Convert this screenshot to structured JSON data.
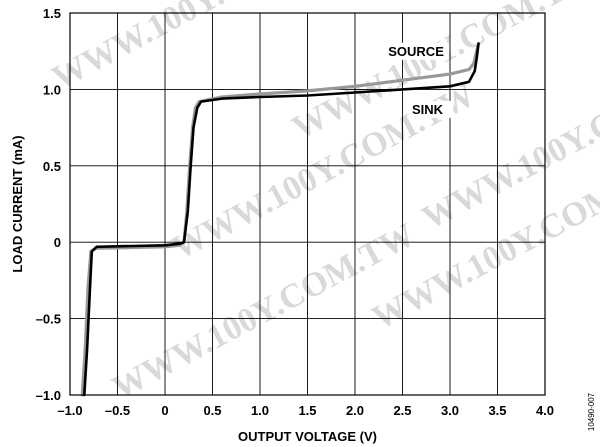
{
  "chart_data": {
    "type": "line",
    "title": "",
    "xlabel": "OUTPUT VOLTAGE (V)",
    "ylabel": "LOAD CURRENT (mA)",
    "xlim": [
      -1.0,
      4.0
    ],
    "ylim": [
      -1.0,
      1.5
    ],
    "grid": true,
    "x_ticks": [
      "–1.0",
      "–0.5",
      "0",
      "0.5",
      "1.0",
      "1.5",
      "2.0",
      "2.5",
      "3.0",
      "3.5",
      "4.0"
    ],
    "x_tick_values": [
      -1.0,
      -0.5,
      0,
      0.5,
      1.0,
      1.5,
      2.0,
      2.5,
      3.0,
      3.5,
      4.0
    ],
    "y_ticks": [
      "1.5",
      "1.0",
      "0.5",
      "0",
      "–0.5",
      "–1.0"
    ],
    "y_tick_values": [
      1.5,
      1.0,
      0.5,
      0,
      -0.5,
      -1.0
    ],
    "series": [
      {
        "name": "SINK",
        "color": "#000000",
        "points": [
          [
            -0.85,
            -1.0
          ],
          [
            -0.82,
            -0.7
          ],
          [
            -0.79,
            -0.3
          ],
          [
            -0.77,
            -0.06
          ],
          [
            -0.72,
            -0.03
          ],
          [
            0.0,
            -0.02
          ],
          [
            0.15,
            -0.01
          ],
          [
            0.2,
            0.0
          ],
          [
            0.24,
            0.2
          ],
          [
            0.27,
            0.5
          ],
          [
            0.3,
            0.75
          ],
          [
            0.34,
            0.88
          ],
          [
            0.38,
            0.92
          ],
          [
            0.6,
            0.94
          ],
          [
            1.0,
            0.95
          ],
          [
            1.5,
            0.96
          ],
          [
            2.0,
            0.98
          ],
          [
            2.5,
            1.0
          ],
          [
            3.0,
            1.02
          ],
          [
            3.2,
            1.05
          ],
          [
            3.26,
            1.12
          ],
          [
            3.28,
            1.2
          ],
          [
            3.3,
            1.3
          ]
        ]
      },
      {
        "name": "SOURCE",
        "color": "#999999",
        "points": [
          [
            -0.87,
            -1.0
          ],
          [
            -0.84,
            -0.7
          ],
          [
            -0.81,
            -0.3
          ],
          [
            -0.78,
            -0.06
          ],
          [
            -0.73,
            -0.04
          ],
          [
            0.0,
            -0.03
          ],
          [
            0.15,
            -0.02
          ],
          [
            0.2,
            0.0
          ],
          [
            0.23,
            0.2
          ],
          [
            0.26,
            0.5
          ],
          [
            0.29,
            0.75
          ],
          [
            0.32,
            0.88
          ],
          [
            0.36,
            0.92
          ],
          [
            0.6,
            0.95
          ],
          [
            1.0,
            0.97
          ],
          [
            1.5,
            0.99
          ],
          [
            2.0,
            1.02
          ],
          [
            2.5,
            1.06
          ],
          [
            3.0,
            1.1
          ],
          [
            3.2,
            1.13
          ],
          [
            3.25,
            1.17
          ],
          [
            3.28,
            1.25
          ],
          [
            3.3,
            1.3
          ]
        ]
      }
    ],
    "annotations": [
      {
        "text": "SOURCE",
        "x": 2.35,
        "y": 1.22
      },
      {
        "text": "SINK",
        "x": 2.6,
        "y": 0.84
      }
    ]
  },
  "watermark": "WWW.100Y.COM.TW",
  "figure_code": "10490-007"
}
